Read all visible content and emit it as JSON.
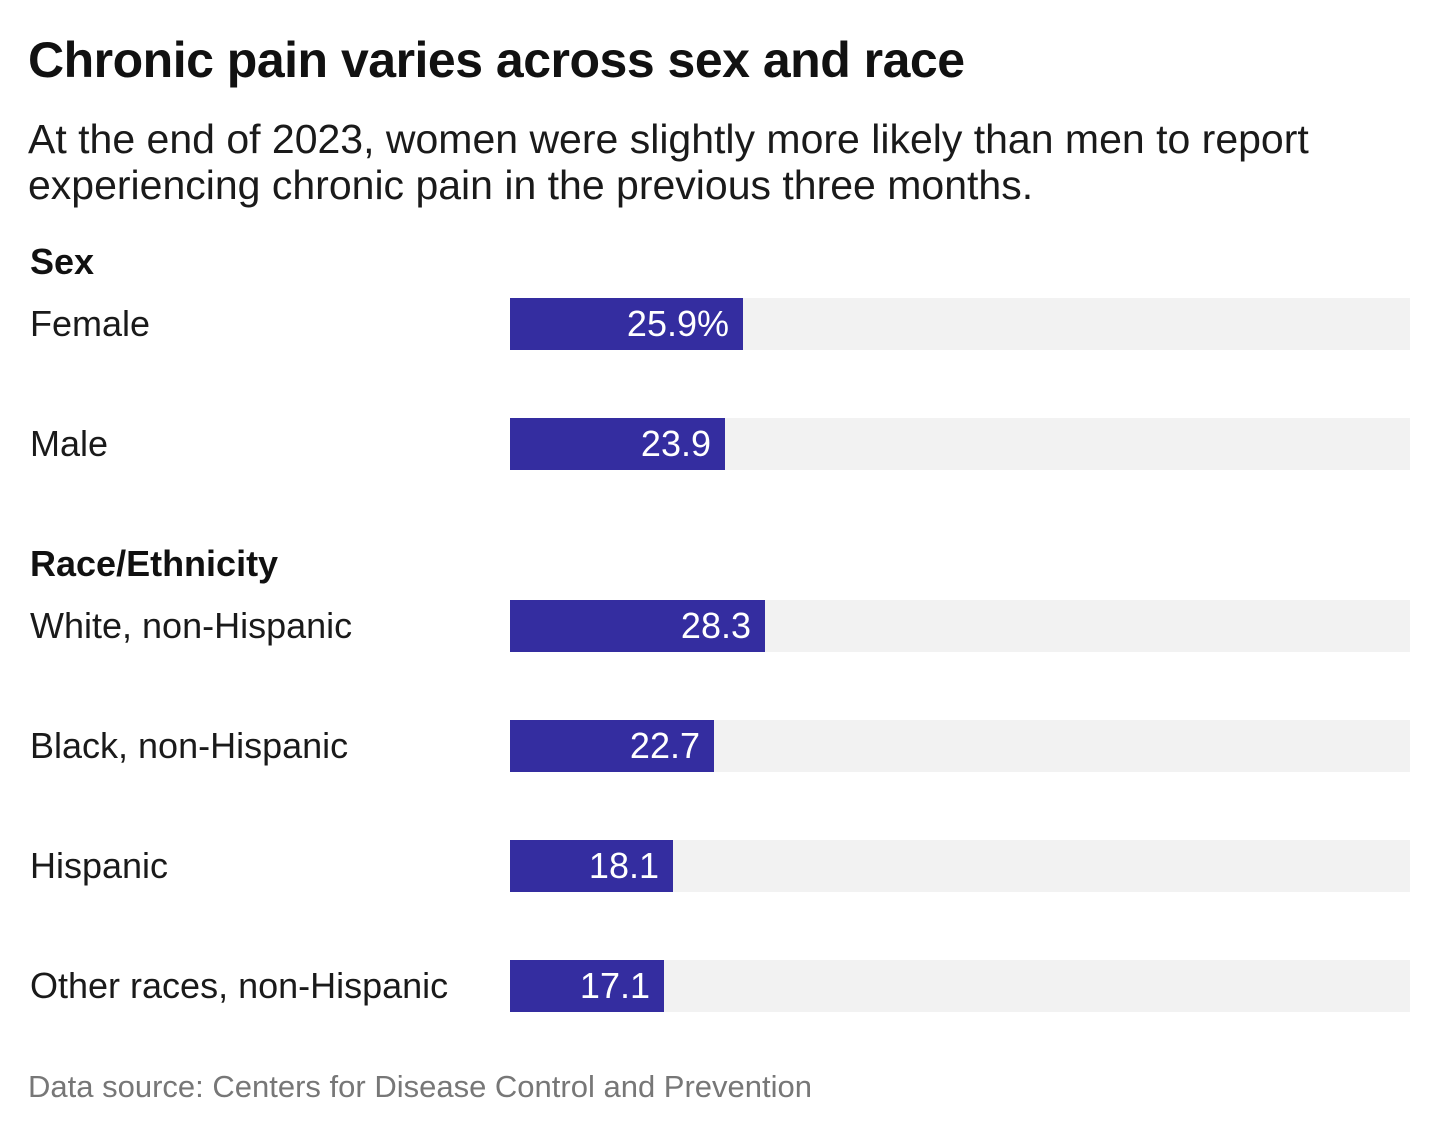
{
  "title": "Chronic pain varies across sex and race",
  "subtitle": "At the end of 2023, women were slightly more likely than men to report experiencing chronic pain in the previous three months.",
  "source": "Data source: Centers for Disease Control and Prevention",
  "colors": {
    "bar": "#342da0",
    "track": "#f2f2f2"
  },
  "chart_data": {
    "type": "bar",
    "orientation": "horizontal",
    "unit": "%",
    "xlim": [
      0,
      100
    ],
    "groups": [
      {
        "label": "Sex",
        "categories": [
          "Female",
          "Male"
        ],
        "values": [
          25.9,
          23.9
        ],
        "value_labels": [
          "25.9%",
          "23.9"
        ]
      },
      {
        "label": "Race/Ethnicity",
        "categories": [
          "White, non-Hispanic",
          "Black, non-Hispanic",
          "Hispanic",
          "Other races, non-Hispanic"
        ],
        "values": [
          28.3,
          22.7,
          18.1,
          17.1
        ],
        "value_labels": [
          "28.3",
          "22.7",
          "18.1",
          "17.1"
        ]
      }
    ]
  }
}
